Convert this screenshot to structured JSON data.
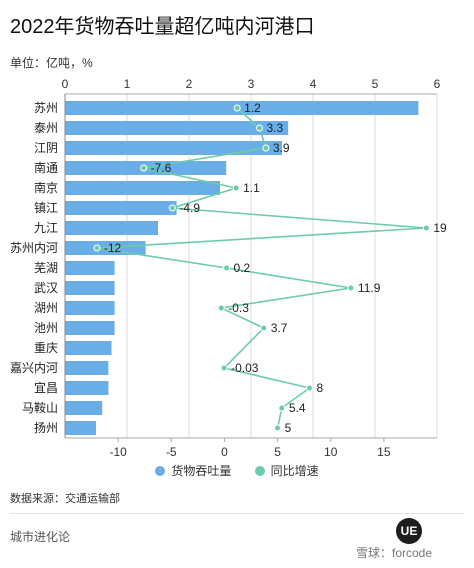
{
  "header": {
    "title": "2022年货物吞吐量超亿吨内河港口",
    "unit": "单位：亿吨，%"
  },
  "legend": {
    "items": [
      {
        "label": "货物吞吐量",
        "color": "#6aaee8"
      },
      {
        "label": "同比增速",
        "color": "#6ccca8"
      }
    ]
  },
  "source": "数据来源：交通运输部",
  "footer": {
    "brand": "城市进化论",
    "logo_text": "UE",
    "credit": "雪球：forcode"
  },
  "chart_data": {
    "type": "bar+line",
    "title": "2022年货物吞吐量超亿吨内河港口",
    "unit": "亿吨，%",
    "categories": [
      "苏州",
      "泰州",
      "江阴",
      "南通",
      "南京",
      "镇江",
      "九江",
      "苏州内河",
      "芜湖",
      "武汉",
      "湖州",
      "池州",
      "重庆",
      "嘉兴内河",
      "宜昌",
      "马鞍山",
      "扬州"
    ],
    "series": [
      {
        "name": "货物吞吐量",
        "type": "bar",
        "axis": "top",
        "values": [
          5.7,
          3.6,
          3.5,
          2.6,
          2.5,
          1.8,
          1.5,
          1.3,
          0.8,
          0.8,
          0.8,
          0.8,
          0.75,
          0.7,
          0.7,
          0.6,
          0.5
        ]
      },
      {
        "name": "同比增速",
        "type": "line",
        "axis": "bottom",
        "values": [
          1.2,
          3.3,
          3.9,
          -7.6,
          1.1,
          -4.9,
          19,
          -12,
          0.2,
          11.9,
          -0.3,
          3.7,
          null,
          -0.03,
          8,
          5.4,
          5
        ],
        "labels": [
          "1.2",
          "3.3",
          "3.9",
          "-7.6",
          "1.1",
          "-4.9",
          "19",
          "-12",
          "0.2",
          "11.9",
          "-0.3",
          "3.7",
          "",
          "-0.03",
          "8",
          "5.4",
          "5"
        ]
      }
    ],
    "top_axis": {
      "min": 0,
      "max": 6,
      "ticks": [
        "0",
        "1",
        "2",
        "3",
        "4",
        "5",
        "6"
      ]
    },
    "bottom_axis": {
      "min": -15,
      "max": 20,
      "ticks": [
        "-10",
        "-5",
        "0",
        "5",
        "10",
        "15"
      ]
    },
    "grid": true,
    "legend_position": "bottom-center"
  }
}
